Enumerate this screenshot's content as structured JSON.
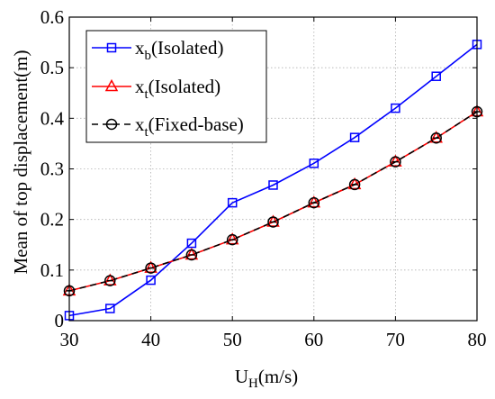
{
  "chart_data": {
    "type": "line",
    "xlabel_main": "U",
    "xlabel_sub": "H",
    "xlabel_tail": "(m/s)",
    "ylabel": "Mean of top displacement(m)",
    "xlim": [
      30,
      80
    ],
    "ylim": [
      0,
      0.6
    ],
    "xticks": [
      30,
      40,
      50,
      60,
      70,
      80
    ],
    "xtick_labels": [
      "30",
      "40",
      "50",
      "60",
      "70",
      "80"
    ],
    "yticks": [
      0,
      0.1,
      0.2,
      0.3,
      0.4,
      0.5,
      0.6
    ],
    "ytick_labels": [
      "0",
      "0.1",
      "0.2",
      "0.3",
      "0.4",
      "0.5",
      "0.6"
    ],
    "grid": true,
    "legend_position": "top-left",
    "x": [
      30,
      35,
      40,
      45,
      50,
      55,
      60,
      65,
      70,
      75,
      80
    ],
    "series": [
      {
        "key": "xb",
        "label_main": "x",
        "label_sub": "b",
        "label_tail": "(Isolated)",
        "color": "#0000ff",
        "marker": "square",
        "line_style": "solid",
        "values": [
          0.01,
          0.024,
          0.08,
          0.153,
          0.233,
          0.268,
          0.311,
          0.362,
          0.42,
          0.483,
          0.546
        ]
      },
      {
        "key": "xt_iso",
        "label_main": "x",
        "label_sub": "t",
        "label_tail": "(Isolated)",
        "color": "#ff0000",
        "marker": "triangle",
        "line_style": "solid",
        "values": [
          0.059,
          0.079,
          0.104,
          0.13,
          0.16,
          0.195,
          0.233,
          0.269,
          0.314,
          0.361,
          0.413
        ]
      },
      {
        "key": "xt_fixed",
        "label_main": "x",
        "label_sub": "t",
        "label_tail": "(Fixed-base)",
        "color": "#000000",
        "marker": "circle",
        "line_style": "dashed",
        "values": [
          0.059,
          0.079,
          0.104,
          0.13,
          0.16,
          0.195,
          0.233,
          0.269,
          0.314,
          0.361,
          0.413
        ]
      }
    ]
  }
}
